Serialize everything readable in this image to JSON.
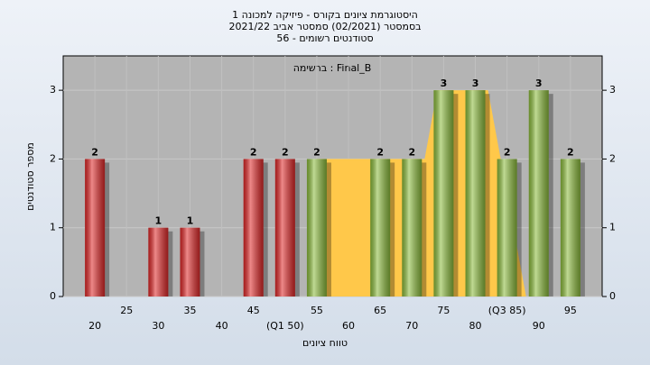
{
  "chart_data": {
    "type": "bar",
    "title": [
      "היסטוגרמת ציונים בקורס - פיזיקה למכונה 1",
      "בסמסטר  (02/2021)  סמסטר אביב 2021/22",
      "סטודנטים רשומים - 56"
    ],
    "annotation": "ברשימה : Final_B",
    "y_label": "מספר סטודנטים",
    "x_label": "טווח ציונים",
    "x": [
      20,
      25,
      30,
      35,
      40,
      45,
      50,
      55,
      60,
      65,
      70,
      75,
      80,
      85,
      90,
      95
    ],
    "xtick_labels": [
      "20",
      "25",
      "30",
      "35",
      "40",
      "45",
      "(Q1 50)",
      "55",
      "60",
      "65",
      "70",
      "75",
      "80",
      "(Q3 85)",
      "90",
      "95"
    ],
    "values": [
      2,
      0,
      1,
      1,
      0,
      2,
      2,
      2,
      0,
      2,
      2,
      3,
      3,
      2,
      3,
      2
    ],
    "colors": [
      "#e02828",
      "#e02828",
      "#e02828",
      "#e02828",
      "#e02828",
      "#e02828",
      "#e02828",
      "#8cbc3c",
      "#8cbc3c",
      "#8cbc3c",
      "#8cbc3c",
      "#8cbc3c",
      "#8cbc3c",
      "#8cbc3c",
      "#8cbc3c",
      "#8cbc3c"
    ],
    "area": {
      "x": [
        55,
        72,
        74,
        82,
        84,
        88
      ],
      "values": [
        2,
        2,
        3,
        3,
        2,
        0
      ],
      "color": "#ffc84a"
    },
    "xlim": [
      15,
      100
    ],
    "ylim": [
      0,
      3.5
    ],
    "yticks": [
      0,
      1,
      2,
      3
    ],
    "grid": true
  }
}
